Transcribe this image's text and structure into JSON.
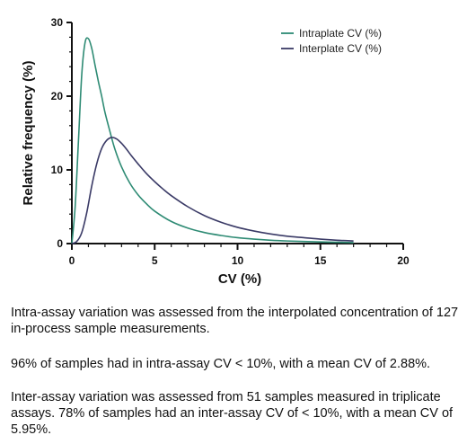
{
  "chart_data": {
    "type": "line",
    "title": "",
    "xlabel": "CV (%)",
    "ylabel": "Relative frequency (%)",
    "xlim": [
      0,
      20
    ],
    "ylim": [
      0,
      30
    ],
    "x_ticks": [
      0,
      5,
      10,
      15,
      20
    ],
    "y_ticks": [
      0,
      10,
      20,
      30
    ],
    "grid": false,
    "legend_position": "top-right",
    "series": [
      {
        "name": "Intraplate CV (%)",
        "color": "#2e8b74",
        "x": [
          0,
          0.2,
          0.4,
          0.6,
          0.8,
          1.0,
          1.2,
          1.4,
          1.6,
          1.8,
          2.0,
          2.3,
          2.6,
          3.0,
          3.5,
          4.0,
          4.5,
          5.0,
          6.0,
          7.0,
          8.0,
          9.0,
          10.0,
          11.0,
          12.0,
          13.0,
          14.0,
          15.0,
          16.0,
          17.0
        ],
        "y": [
          0,
          5,
          14,
          23,
          27.3,
          27.8,
          26.5,
          24.2,
          22,
          20,
          17.8,
          15.2,
          12.8,
          10.4,
          8.2,
          6.6,
          5.4,
          4.4,
          3.0,
          2.1,
          1.5,
          1.1,
          0.8,
          0.6,
          0.45,
          0.35,
          0.28,
          0.22,
          0.17,
          0.13
        ]
      },
      {
        "name": "Interplate CV (%)",
        "color": "#3a3a66",
        "x": [
          0,
          0.3,
          0.6,
          0.9,
          1.2,
          1.5,
          1.8,
          2.1,
          2.4,
          2.7,
          3.0,
          3.3,
          3.6,
          4.0,
          4.5,
          5.0,
          5.5,
          6.0,
          7.0,
          8.0,
          9.0,
          10.0,
          11.0,
          12.0,
          13.0,
          14.0,
          15.0,
          16.0,
          17.0
        ],
        "y": [
          0,
          0.3,
          1.5,
          4.2,
          7.8,
          10.8,
          12.9,
          14.0,
          14.4,
          14.2,
          13.6,
          12.8,
          11.9,
          10.8,
          9.5,
          8.4,
          7.4,
          6.5,
          5.0,
          3.8,
          2.9,
          2.2,
          1.7,
          1.3,
          1.0,
          0.8,
          0.6,
          0.45,
          0.35
        ]
      }
    ]
  },
  "caption": {
    "paragraph1": "Intra-assay variation was assessed from the interpolated concentration of 127 in-process sample measurements.",
    "paragraph2": "96% of samples had in intra-assay CV < 10%, with a mean CV of 2.88%.",
    "paragraph3": "Inter-assay variation was assessed from 51 samples measured in triplicate assays. 78% of samples had an inter-assay CV of < 10%, with a mean CV of 5.95%."
  }
}
